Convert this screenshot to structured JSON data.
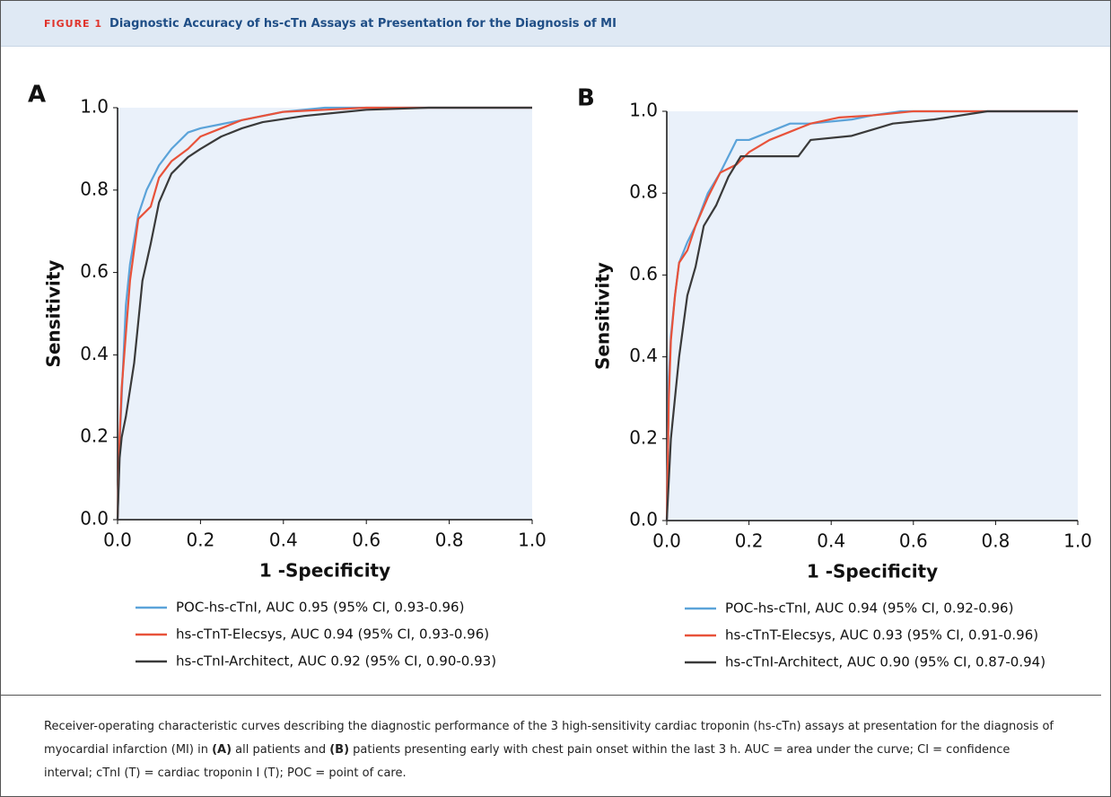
{
  "header": {
    "label": "FIGURE 1",
    "title": "Diagnostic Accuracy of hs-cTn Assays at Presentation for the Diagnosis of MI"
  },
  "chart_data": [
    {
      "type": "line",
      "panel": "A",
      "x_label": "1 -Specificity",
      "y_label": "Sensitivity",
      "xlim": [
        0,
        1
      ],
      "ylim": [
        0,
        1
      ],
      "xticks": [
        {
          "value": 0,
          "label": "0.0"
        },
        0.2,
        0.4,
        0.6,
        0.8,
        {
          "value": 1,
          "label": "1.0"
        }
      ],
      "yticks": [
        {
          "value": 0,
          "label": "0.0"
        },
        0.2,
        0.4,
        0.6,
        0.8,
        {
          "value": 1,
          "label": "1.0"
        }
      ],
      "series": [
        {
          "name": "POC-hs-cTnI, AUC 0.95 (95% CI, 0.93-0.96)",
          "color": "#5ba3d9",
          "x": [
            0,
            0.005,
            0.01,
            0.02,
            0.03,
            0.05,
            0.07,
            0.1,
            0.13,
            0.17,
            0.2,
            0.25,
            0.3,
            0.4,
            0.5,
            0.6,
            0.75,
            1
          ],
          "values": [
            0,
            0.18,
            0.3,
            0.52,
            0.62,
            0.74,
            0.8,
            0.86,
            0.9,
            0.94,
            0.95,
            0.96,
            0.97,
            0.99,
            1,
            1,
            1,
            1
          ]
        },
        {
          "name": "hs-cTnT-Elecsys, AUC 0.94 (95% CI, 0.93-0.96)",
          "color": "#e8523a",
          "x": [
            0,
            0.005,
            0.01,
            0.02,
            0.03,
            0.05,
            0.08,
            0.1,
            0.13,
            0.17,
            0.2,
            0.25,
            0.3,
            0.4,
            0.5,
            0.6,
            0.75,
            1
          ],
          "values": [
            0,
            0.2,
            0.32,
            0.45,
            0.58,
            0.73,
            0.76,
            0.83,
            0.87,
            0.9,
            0.93,
            0.95,
            0.97,
            0.99,
            0.995,
            1,
            1,
            1
          ]
        },
        {
          "name": "hs-cTnI-Architect, AUC 0.92 (95% CI, 0.90-0.93)",
          "color": "#3a3a3a",
          "x": [
            0,
            0.005,
            0.01,
            0.02,
            0.04,
            0.06,
            0.08,
            0.1,
            0.13,
            0.17,
            0.2,
            0.25,
            0.3,
            0.35,
            0.45,
            0.6,
            0.75,
            1
          ],
          "values": [
            0,
            0.15,
            0.2,
            0.25,
            0.38,
            0.58,
            0.67,
            0.77,
            0.84,
            0.88,
            0.9,
            0.93,
            0.95,
            0.965,
            0.98,
            0.995,
            1,
            1
          ]
        }
      ]
    },
    {
      "type": "line",
      "panel": "B",
      "x_label": "1 -Specificity",
      "y_label": "Sensitivity",
      "xlim": [
        0,
        1
      ],
      "ylim": [
        0,
        1
      ],
      "xticks": [
        {
          "value": 0,
          "label": "0.0"
        },
        0.2,
        0.4,
        0.6,
        0.8,
        {
          "value": 1,
          "label": "1.0"
        }
      ],
      "yticks": [
        {
          "value": 0,
          "label": "0.0"
        },
        0.2,
        0.4,
        0.6,
        0.8,
        {
          "value": 1,
          "label": "1.0"
        }
      ],
      "series": [
        {
          "name": "POC-hs-cTnI, AUC 0.94 (95% CI, 0.92-0.96)",
          "color": "#5ba3d9",
          "x": [
            0,
            0.005,
            0.01,
            0.02,
            0.03,
            0.05,
            0.07,
            0.1,
            0.13,
            0.17,
            0.2,
            0.25,
            0.3,
            0.35,
            0.45,
            0.5,
            0.57,
            1
          ],
          "values": [
            0,
            0.35,
            0.45,
            0.55,
            0.63,
            0.68,
            0.72,
            0.8,
            0.85,
            0.93,
            0.93,
            0.95,
            0.97,
            0.97,
            0.98,
            0.99,
            1,
            1
          ]
        },
        {
          "name": "hs-cTnT-Elecsys, AUC 0.93 (95% CI, 0.91-0.96)",
          "color": "#e8523a",
          "x": [
            0,
            0.005,
            0.01,
            0.02,
            0.03,
            0.05,
            0.07,
            0.1,
            0.13,
            0.17,
            0.2,
            0.25,
            0.3,
            0.35,
            0.42,
            0.5,
            0.6,
            0.8,
            1
          ],
          "values": [
            0,
            0.3,
            0.44,
            0.55,
            0.63,
            0.66,
            0.72,
            0.79,
            0.85,
            0.87,
            0.9,
            0.93,
            0.95,
            0.97,
            0.985,
            0.99,
            1,
            1,
            1
          ]
        },
        {
          "name": "hs-cTnI-Architect, AUC 0.90 (95% CI, 0.87-0.94)",
          "color": "#3a3a3a",
          "x": [
            0,
            0.005,
            0.01,
            0.02,
            0.03,
            0.05,
            0.07,
            0.09,
            0.12,
            0.15,
            0.18,
            0.25,
            0.32,
            0.35,
            0.45,
            0.55,
            0.65,
            0.78,
            1
          ],
          "values": [
            0,
            0.1,
            0.2,
            0.3,
            0.4,
            0.55,
            0.62,
            0.72,
            0.77,
            0.84,
            0.89,
            0.89,
            0.89,
            0.93,
            0.94,
            0.97,
            0.98,
            1,
            1
          ]
        }
      ]
    }
  ],
  "caption": [
    "Receiver-operating characteristic curves describing the diagnostic performance of the 3 high-sensitivity cardiac troponin (hs-cTn) assays at presentation for the diagnosis of myocardial infarction (MI) in ",
    "(A)",
    " all patients and ",
    "(B)",
    " patients presenting early with chest pain onset within the last 3 h. AUC = area under the curve; CI = confidence interval; cTnI (T) = cardiac troponin I (T); POC = point of care."
  ]
}
